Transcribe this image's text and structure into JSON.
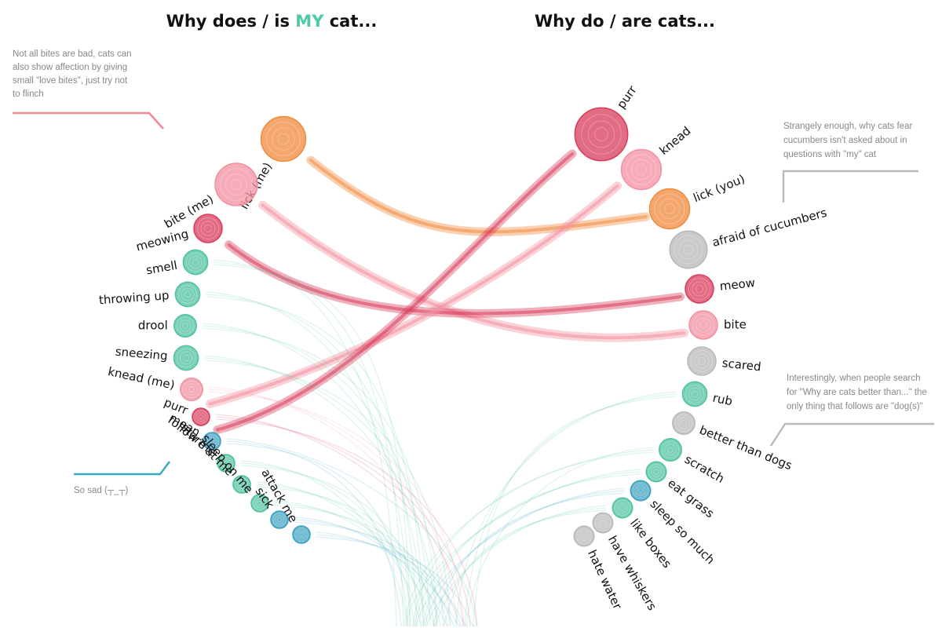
{
  "titles": {
    "left_prefix": "Why does / is ",
    "left_highlight": "MY",
    "left_suffix": " cat...",
    "right": "Why do / are cats..."
  },
  "colors": {
    "orange": "#f08a3c",
    "red": "#d83b5a",
    "pink": "#f290a0",
    "teal": "#4ec2a0",
    "blue": "#3aa0c0",
    "gray": "#b8b8b8",
    "highlight": "#4fc9a7",
    "callout_pink": "#f08898",
    "callout_blue": "#3aaac2",
    "callout_gray": "#bbbbbb"
  },
  "annotations": {
    "bite_note": [
      "Not all bites are bad, cats can",
      "also show affection by giving",
      "small \"love bites\", just try not",
      "to flinch"
    ],
    "cucumber_note": [
      "Strangely enough, why cats fear",
      "cucumbers isn't asked about in",
      "questions with \"my\" cat"
    ],
    "dogs_note": [
      "Interestingly, when people search",
      "for \"Why are cats better than...\" the",
      "only thing that follows are \"dog(s)\""
    ],
    "sad_note": "So sad (┬_┬)"
  },
  "chart_data": {
    "type": "arc-connection",
    "left_title": "Why does / is MY cat...",
    "right_title": "Why do / are cats...",
    "left": [
      {
        "label": "lick (me)",
        "size": 10,
        "color": "orange"
      },
      {
        "label": "bite (me)",
        "size": 9,
        "color": "pink"
      },
      {
        "label": "meowing",
        "size": 4,
        "color": "red"
      },
      {
        "label": "smell",
        "size": 3,
        "color": "teal"
      },
      {
        "label": "throwing up",
        "size": 3,
        "color": "teal"
      },
      {
        "label": "drool",
        "size": 2.5,
        "color": "teal"
      },
      {
        "label": "sneezing",
        "size": 3,
        "color": "teal"
      },
      {
        "label": "knead (me)",
        "size": 2.5,
        "color": "pink"
      },
      {
        "label": "purr",
        "size": 1.5,
        "color": "red"
      },
      {
        "label": "mean",
        "size": 1.5,
        "color": "blue"
      },
      {
        "label": "follow me",
        "size": 1.5,
        "color": "teal"
      },
      {
        "label": "stare at me",
        "size": 1.5,
        "color": "teal"
      },
      {
        "label": "sleep on me",
        "size": 1.5,
        "color": "teal"
      },
      {
        "label": "sick",
        "size": 1.5,
        "color": "blue"
      },
      {
        "label": "attack me",
        "size": 1.5,
        "color": "blue"
      }
    ],
    "right": [
      {
        "label": "purr",
        "size": 14,
        "color": "red"
      },
      {
        "label": "knead",
        "size": 8,
        "color": "pink"
      },
      {
        "label": "lick (you)",
        "size": 8,
        "color": "orange"
      },
      {
        "label": "afraid of cucumbers",
        "size": 7,
        "color": "gray"
      },
      {
        "label": "meow",
        "size": 4,
        "color": "red"
      },
      {
        "label": "bite",
        "size": 4,
        "color": "pink"
      },
      {
        "label": "scared",
        "size": 4,
        "color": "gray"
      },
      {
        "label": "rub",
        "size": 3,
        "color": "teal"
      },
      {
        "label": "better than dogs",
        "size": 2.5,
        "color": "gray"
      },
      {
        "label": "scratch",
        "size": 2.5,
        "color": "teal"
      },
      {
        "label": "eat grass",
        "size": 2,
        "color": "teal"
      },
      {
        "label": "sleep so much",
        "size": 2,
        "color": "blue"
      },
      {
        "label": "like boxes",
        "size": 2,
        "color": "teal"
      },
      {
        "label": "have whiskers",
        "size": 2,
        "color": "gray"
      },
      {
        "label": "hate water",
        "size": 2,
        "color": "gray"
      }
    ],
    "links": [
      {
        "from": "lick (me)",
        "to": "lick (you)",
        "color": "orange"
      },
      {
        "from": "bite (me)",
        "to": "bite",
        "color": "pink"
      },
      {
        "from": "meowing",
        "to": "meow",
        "color": "red"
      },
      {
        "from": "knead (me)",
        "to": "knead",
        "color": "pink"
      },
      {
        "from": "purr",
        "to": "purr",
        "color": "red"
      }
    ]
  }
}
